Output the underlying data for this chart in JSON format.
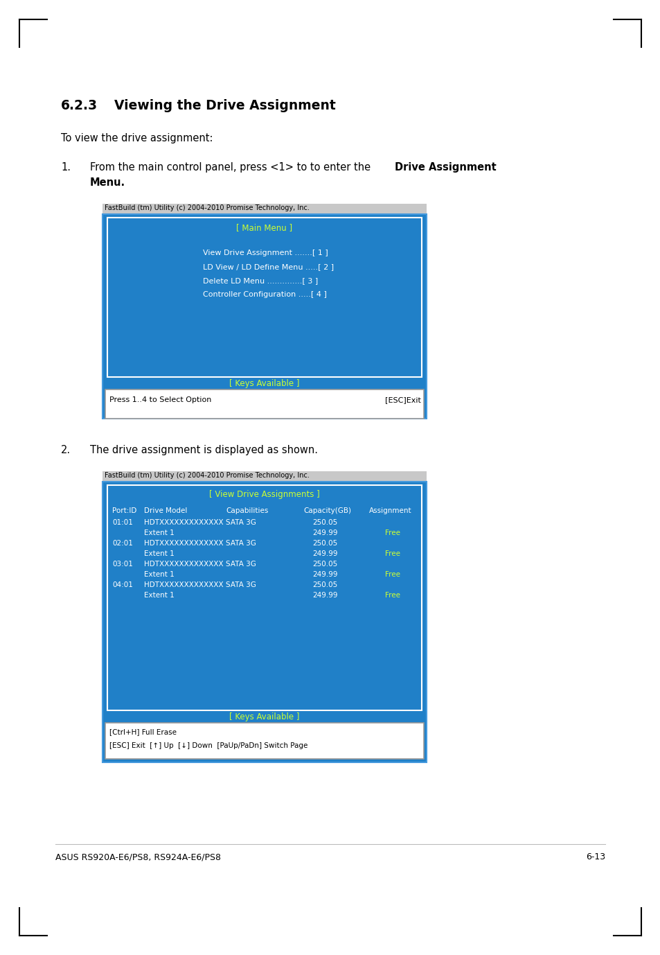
{
  "page_bg": "#ffffff",
  "section_title_num": "6.2.3",
  "section_title_text": "Viewing the Drive Assignment",
  "intro_text": "To view the drive assignment:",
  "step1_num": "1.",
  "step1_normal": "From the main control panel, press <1> to to enter the ",
  "step1_bold": "Drive Assignment",
  "step1_bold2": "Menu",
  "step2_num": "2.",
  "step2_text": "The drive assignment is displayed as shown.",
  "footer_left": "ASUS RS920A-E6/PS8, RS924A-E6/PS8",
  "footer_right": "6-13",
  "screen1": {
    "header_bg": "#c8c8c8",
    "header_text": "FastBuild (tm) Utility (c) 2004-2010 Promise Technology, Inc.",
    "outer_bg": "#2080c8",
    "title_text": "[ Main Menu ]",
    "title_color": "#ccff33",
    "border_color": "#ffffff",
    "menu_items": [
      "View Drive Assignment .......[ 1 ]",
      "LD View / LD Define Menu .....[ 2 ]",
      "Delete LD Menu ..............[ 3 ]",
      "Controller Configuration .....[ 4 ]"
    ],
    "menu_color": "#ffffff",
    "keys_title": "[ Keys Available ]",
    "keys_title_color": "#ccff33",
    "keys_text": "Press 1..4 to Select Option",
    "keys_right": "[ESC]Exit",
    "keys_text_color": "#000000"
  },
  "screen2": {
    "header_bg": "#c8c8c8",
    "header_text": "FastBuild (tm) Utility (c) 2004-2010 Promise Technology, Inc.",
    "outer_bg": "#2080c8",
    "title_text": "[ View Drive Assignments ]",
    "title_color": "#ccff33",
    "border_color": "#ffffff",
    "col_headers": [
      "Port:ID",
      "Drive Model",
      "Capabilities",
      "Capacity(GB)",
      "Assignment"
    ],
    "col_color": "#ffffff",
    "data_rows": [
      [
        "01:01",
        "HDTXXXXXXXXXXXXX",
        "SATA 3G",
        "250.05",
        ""
      ],
      [
        "",
        "Extent 1",
        "",
        "249.99",
        "Free"
      ],
      [
        "02:01",
        "HDTXXXXXXXXXXXXX",
        "SATA 3G",
        "250.05",
        ""
      ],
      [
        "",
        "Extent 1",
        "",
        "249.99",
        "Free"
      ],
      [
        "03:01",
        "HDTXXXXXXXXXXXXX",
        "SATA 3G",
        "250.05",
        ""
      ],
      [
        "",
        "Extent 1",
        "",
        "249.99",
        "Free"
      ],
      [
        "04:01",
        "HDTXXXXXXXXXXXXX",
        "SATA 3G",
        "250.05",
        ""
      ],
      [
        "",
        "Extent 1",
        "",
        "249.99",
        "Free"
      ]
    ],
    "data_color": "#ffffff",
    "free_color": "#ccff33",
    "keys_title": "[ Keys Available ]",
    "keys_title_color": "#ccff33",
    "keys_lines": [
      "[Ctrl+H] Full Erase",
      "[ESC] Exit  [↑] Up  [↓] Down  [PaUp/PaDn] Switch Page"
    ],
    "keys_text_color": "#000000"
  }
}
